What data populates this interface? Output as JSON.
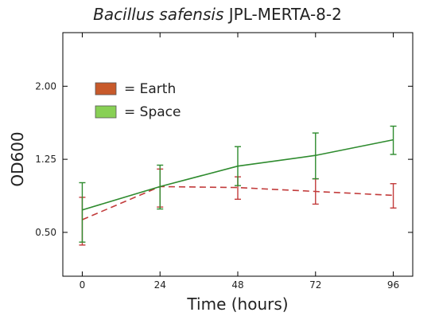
{
  "chart_data": {
    "type": "line",
    "title_italic": "Bacillus safensis",
    "title_rest": "JPL-MERTA-8-2",
    "xlabel": "Time (hours)",
    "ylabel": "OD600",
    "x": [
      0,
      24,
      48,
      72,
      96
    ],
    "xlim": [
      -6,
      102
    ],
    "ylim": [
      0.05,
      2.55
    ],
    "yticks": [
      0.5,
      1.25,
      2.0
    ],
    "ytick_labels": [
      "0.50",
      "1.25",
      "2.00"
    ],
    "xtick_labels": [
      "0",
      "24",
      "48",
      "72",
      "96"
    ],
    "legend_position": "upper-left",
    "series": [
      {
        "name": "= Earth",
        "color": "#c85a2b",
        "line_color": "#c23b3b",
        "style": "dashed",
        "values": [
          0.63,
          0.97,
          0.96,
          0.92,
          0.88
        ],
        "err_low": [
          0.37,
          0.76,
          0.84,
          0.79,
          0.75
        ],
        "err_high": [
          0.86,
          1.15,
          1.07,
          1.05,
          1.0
        ]
      },
      {
        "name": "= Space",
        "color": "#88d055",
        "line_color": "#2e8b2e",
        "style": "solid",
        "values": [
          0.73,
          0.97,
          1.18,
          1.29,
          1.45
        ],
        "err_low": [
          0.4,
          0.74,
          0.98,
          1.05,
          1.3
        ],
        "err_high": [
          1.01,
          1.19,
          1.38,
          1.52,
          1.59
        ]
      }
    ]
  }
}
